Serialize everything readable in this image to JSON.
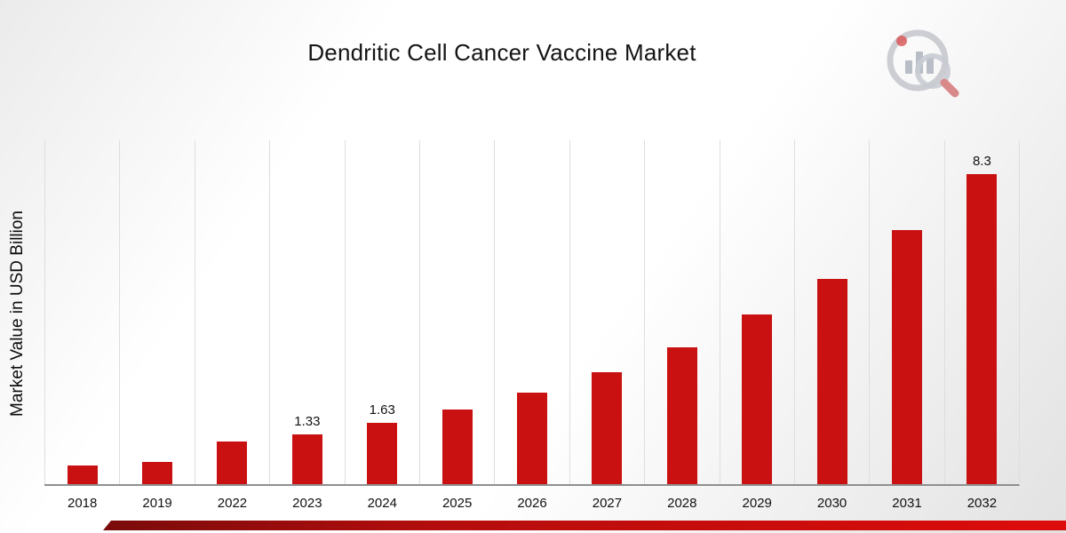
{
  "page": {
    "title": "Dendritic Cell Cancer Vaccine Market",
    "y_axis_label": "Market Value in USD Billion"
  },
  "chart_data": {
    "type": "bar",
    "title": "Dendritic Cell Cancer Vaccine Market",
    "xlabel": "",
    "ylabel": "Market Value in USD Billion",
    "categories": [
      "2018",
      "2019",
      "2022",
      "2023",
      "2024",
      "2025",
      "2026",
      "2027",
      "2028",
      "2029",
      "2030",
      "2031",
      "2032"
    ],
    "values": [
      0.5,
      0.6,
      1.15,
      1.33,
      1.63,
      2.0,
      2.45,
      3.0,
      3.65,
      4.55,
      5.5,
      6.8,
      8.3
    ],
    "data_labels": [
      "",
      "",
      "",
      "1.33",
      "1.63",
      "",
      "",
      "",
      "",
      "",
      "",
      "",
      "8.3"
    ],
    "ylim": [
      0,
      9.2
    ],
    "grid": "vertical",
    "legend": "none",
    "bar_color": "#c91111"
  },
  "colors": {
    "bar": "#c91111",
    "ribbon_dark": "#7a0b0b",
    "ribbon_bright": "#dd0c0c",
    "gridline": "#dedede",
    "axis": "#8f8f8f",
    "logo_gray": "#b9bdc6",
    "logo_red": "#d21414"
  },
  "icons": {
    "logo": "market-research-logo"
  }
}
